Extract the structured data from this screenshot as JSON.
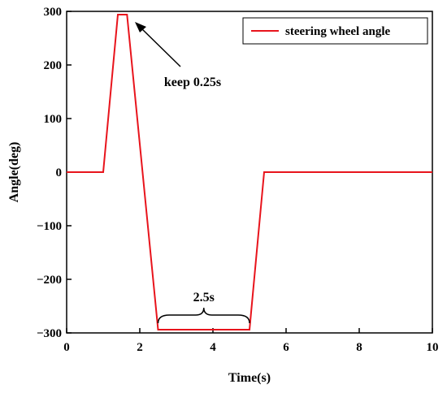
{
  "chart_data": {
    "type": "line",
    "xlabel": "Time(s)",
    "ylabel": "Angle(deg)",
    "xlim": [
      0,
      10
    ],
    "ylim": [
      -300,
      300
    ],
    "x_ticks": [
      0,
      2,
      4,
      6,
      8,
      10
    ],
    "y_ticks": [
      300,
      200,
      100,
      0,
      -100,
      -200,
      -300
    ],
    "y_tick_labels": [
      "300",
      "200",
      "100",
      "0",
      "−100",
      "−200",
      "−300"
    ],
    "grid": false,
    "legend_position": "top-right",
    "series": [
      {
        "name": "steering wheel angle",
        "color": "#e8141c",
        "x": [
          0,
          1,
          1.4,
          1.65,
          2.5,
          5.0,
          5.4,
          10
        ],
        "y": [
          0,
          0,
          294,
          294,
          -294,
          -294,
          0,
          0
        ]
      }
    ],
    "annotations": [
      {
        "text": "keep 0.25s",
        "type": "arrow",
        "points_to_x": 1.9,
        "points_to_y": 280
      },
      {
        "text": "2.5s",
        "type": "brace",
        "x_start": 2.5,
        "x_end": 5.0
      }
    ]
  }
}
